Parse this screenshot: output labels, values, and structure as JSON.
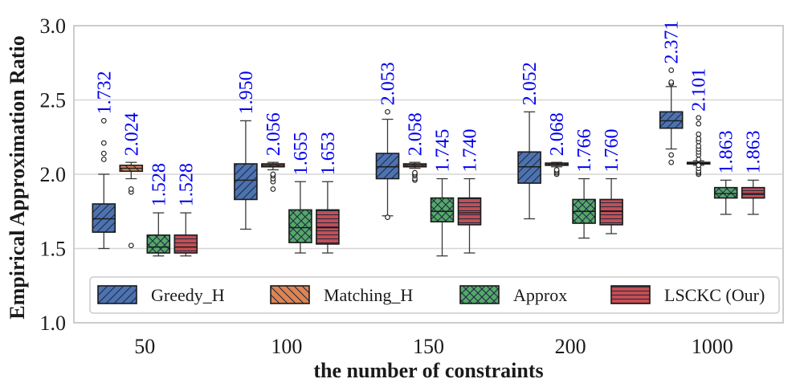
{
  "chart_data": {
    "type": "box",
    "xlabel": "the number of constraints",
    "ylabel": "Empirical Approximation Ratio",
    "ylim": [
      1.0,
      3.0
    ],
    "yticks": [
      "1.0",
      "1.5",
      "2.0",
      "2.5",
      "3.0"
    ],
    "categories": [
      "50",
      "100",
      "150",
      "200",
      "1000"
    ],
    "grid": true,
    "legend_position": "bottom",
    "series": [
      {
        "name": "Greedy_H",
        "color": "#4c72b0",
        "hatch": "diagonal-forward",
        "labels": [
          "1.732",
          "1.950",
          "2.053",
          "2.052",
          "2.371"
        ],
        "boxes": [
          {
            "whislo": 1.5,
            "q1": 1.61,
            "med": 1.7,
            "q3": 1.8,
            "whishi": 2.0,
            "fliers": [
              2.1,
              2.14,
              2.21,
              2.36
            ]
          },
          {
            "whislo": 1.63,
            "q1": 1.83,
            "med": 1.96,
            "q3": 2.07,
            "whishi": 2.36,
            "fliers": []
          },
          {
            "whislo": 1.72,
            "q1": 1.97,
            "med": 2.05,
            "q3": 2.14,
            "whishi": 2.37,
            "fliers": [
              1.71,
              2.42
            ]
          },
          {
            "whislo": 1.7,
            "q1": 1.94,
            "med": 2.05,
            "q3": 2.15,
            "whishi": 2.42,
            "fliers": []
          },
          {
            "whislo": 2.17,
            "q1": 2.31,
            "med": 2.36,
            "q3": 2.42,
            "whishi": 2.59,
            "fliers": [
              2.08,
              2.13,
              2.61,
              2.62,
              2.7
            ]
          }
        ]
      },
      {
        "name": "Matching_H",
        "color": "#dd8452",
        "hatch": "diagonal-back",
        "labels": [
          "2.024",
          "2.056",
          "2.058",
          "2.068",
          "2.101"
        ],
        "boxes": [
          {
            "whislo": 1.97,
            "q1": 2.02,
            "med": 2.04,
            "q3": 2.06,
            "whishi": 2.08,
            "fliers": [
              1.52,
              1.88,
              1.9
            ]
          },
          {
            "whislo": 2.03,
            "q1": 2.05,
            "med": 2.06,
            "q3": 2.07,
            "whishi": 2.08,
            "fliers": [
              1.9,
              1.95,
              1.97,
              1.99,
              2.0
            ]
          },
          {
            "whislo": 2.04,
            "q1": 2.05,
            "med": 2.06,
            "q3": 2.07,
            "whishi": 2.08,
            "fliers": [
              1.96,
              1.97,
              1.99,
              2.0,
              2.01
            ]
          },
          {
            "whislo": 2.05,
            "q1": 2.06,
            "med": 2.065,
            "q3": 2.075,
            "whishi": 2.08,
            "fliers": [
              2.0,
              2.01,
              2.02,
              2.03
            ]
          },
          {
            "whislo": 2.06,
            "q1": 2.07,
            "med": 2.075,
            "q3": 2.08,
            "whishi": 2.09,
            "fliers": [
              2.0,
              2.01,
              2.02,
              2.04,
              2.06,
              2.1,
              2.13,
              2.15,
              2.17,
              2.19,
              2.22,
              2.24,
              2.27,
              2.34,
              2.38
            ]
          }
        ]
      },
      {
        "name": "Approx",
        "color": "#55a868",
        "hatch": "cross",
        "labels": [
          "1.528",
          "1.655",
          "1.745",
          "1.766",
          "1.863"
        ],
        "boxes": [
          {
            "whislo": 1.45,
            "q1": 1.47,
            "med": 1.51,
            "q3": 1.59,
            "whishi": 1.74,
            "fliers": []
          },
          {
            "whislo": 1.47,
            "q1": 1.54,
            "med": 1.64,
            "q3": 1.76,
            "whishi": 1.95,
            "fliers": []
          },
          {
            "whislo": 1.45,
            "q1": 1.68,
            "med": 1.75,
            "q3": 1.84,
            "whishi": 1.97,
            "fliers": []
          },
          {
            "whislo": 1.57,
            "q1": 1.67,
            "med": 1.75,
            "q3": 1.83,
            "whishi": 1.97,
            "fliers": []
          },
          {
            "whislo": 1.73,
            "q1": 1.84,
            "med": 1.87,
            "q3": 1.91,
            "whishi": 1.96,
            "fliers": []
          }
        ]
      },
      {
        "name": "LSCKC (Our)",
        "color": "#c44e52",
        "hatch": "horizontal",
        "labels": [
          "1.528",
          "1.653",
          "1.740",
          "1.760",
          "1.863"
        ],
        "boxes": [
          {
            "whislo": 1.45,
            "q1": 1.47,
            "med": 1.51,
            "q3": 1.59,
            "whishi": 1.74,
            "fliers": []
          },
          {
            "whislo": 1.47,
            "q1": 1.53,
            "med": 1.64,
            "q3": 1.76,
            "whishi": 1.95,
            "fliers": []
          },
          {
            "whislo": 1.47,
            "q1": 1.66,
            "med": 1.74,
            "q3": 1.84,
            "whishi": 1.97,
            "fliers": []
          },
          {
            "whislo": 1.6,
            "q1": 1.66,
            "med": 1.75,
            "q3": 1.83,
            "whishi": 1.97,
            "fliers": []
          },
          {
            "whislo": 1.73,
            "q1": 1.84,
            "med": 1.87,
            "q3": 1.91,
            "whishi": 1.96,
            "fliers": []
          }
        ]
      }
    ]
  }
}
